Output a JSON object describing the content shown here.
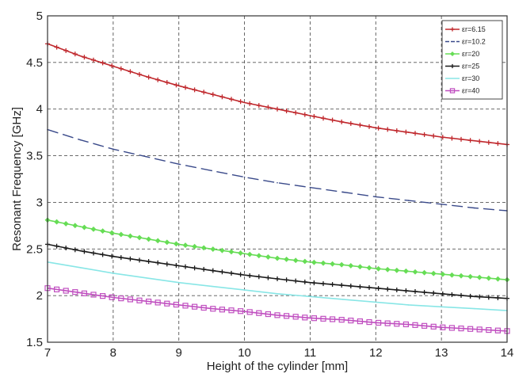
{
  "chart_data": {
    "type": "line",
    "title": "",
    "xlabel": "Height of the cylinder [mm]",
    "ylabel": "Resonant Frequency [GHz]",
    "xlim": [
      7,
      14
    ],
    "ylim": [
      1.5,
      5
    ],
    "x_ticks": [
      "7",
      "8",
      "9",
      "10",
      "11",
      "12",
      "13",
      "14"
    ],
    "y_ticks": [
      "1.5",
      "2",
      "2.5",
      "3",
      "3.5",
      "4",
      "4.5",
      "5"
    ],
    "grid": true,
    "legend_position": "top-right",
    "x": [
      7.0,
      7.5,
      8.0,
      8.5,
      9.0,
      9.5,
      10.0,
      10.5,
      11.0,
      11.5,
      12.0,
      12.5,
      13.0,
      13.5,
      14.0
    ],
    "series": [
      {
        "name": "εr=6.15",
        "color": "#c0282d",
        "marker": "plus",
        "dash": "none",
        "values": [
          4.7,
          4.57,
          4.46,
          4.35,
          4.25,
          4.16,
          4.07,
          4.0,
          3.93,
          3.86,
          3.8,
          3.75,
          3.7,
          3.66,
          3.62
        ]
      },
      {
        "name": "εr=10.2",
        "color": "#3a4a8a",
        "marker": "none",
        "dash": "dashed",
        "values": [
          3.78,
          3.67,
          3.57,
          3.49,
          3.41,
          3.34,
          3.27,
          3.21,
          3.16,
          3.11,
          3.06,
          3.02,
          2.98,
          2.94,
          2.91
        ]
      },
      {
        "name": "εr=20",
        "color": "#66dd55",
        "marker": "diamond",
        "dash": "none",
        "values": [
          2.81,
          2.74,
          2.67,
          2.61,
          2.55,
          2.5,
          2.45,
          2.4,
          2.36,
          2.33,
          2.29,
          2.26,
          2.23,
          2.2,
          2.17
        ]
      },
      {
        "name": "εr=25",
        "color": "#1a1a1a",
        "marker": "plus",
        "dash": "none",
        "values": [
          2.55,
          2.48,
          2.42,
          2.37,
          2.32,
          2.27,
          2.22,
          2.18,
          2.14,
          2.11,
          2.08,
          2.05,
          2.02,
          1.99,
          1.97
        ]
      },
      {
        "name": "εr=30",
        "color": "#88e6e6",
        "marker": "none",
        "dash": "none",
        "values": [
          2.36,
          2.3,
          2.24,
          2.19,
          2.14,
          2.1,
          2.06,
          2.02,
          1.99,
          1.96,
          1.93,
          1.9,
          1.88,
          1.86,
          1.84
        ]
      },
      {
        "name": "εr=40",
        "color": "#c04fc0",
        "marker": "square",
        "dash": "none",
        "values": [
          2.08,
          2.03,
          1.98,
          1.94,
          1.9,
          1.86,
          1.83,
          1.79,
          1.76,
          1.74,
          1.71,
          1.69,
          1.66,
          1.64,
          1.62
        ]
      }
    ]
  }
}
